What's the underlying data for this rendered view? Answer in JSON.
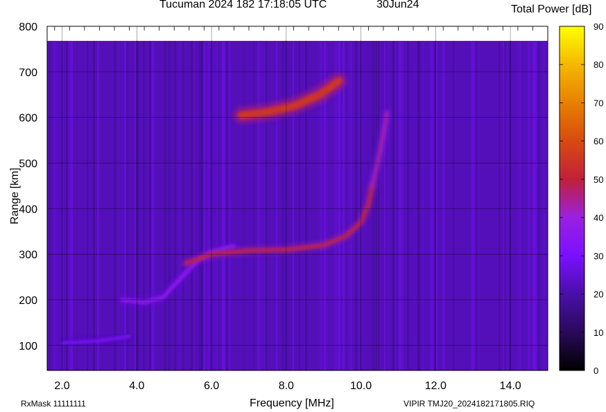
{
  "header": {
    "title": "Tucuman 2024 182 17:18:05 UTC",
    "date": "30Jun24"
  },
  "colorbar": {
    "title": "Total Power [dB]",
    "min": 0,
    "max": 90,
    "ticks": [
      "0",
      "10",
      "20",
      "30",
      "40",
      "50",
      "60",
      "70",
      "80",
      "90"
    ],
    "colors": [
      "#000000",
      "#2a0a5a",
      "#4a0fa8",
      "#7a10ff",
      "#9a20e0",
      "#c0203a",
      "#d84a10",
      "#e88000",
      "#f5b800",
      "#ffff00"
    ]
  },
  "footer": {
    "rxmask": "RxMask 11111111",
    "fileinfo": "VIPIR  TMJ20_2024182171805.RIQ"
  },
  "chart_data": {
    "type": "heatmap",
    "title": "Tucuman 2024 182 17:18:05 UTC",
    "xlabel": "Frequency [MHz]",
    "ylabel": "Range [km]",
    "xlim": [
      1.6,
      15.0
    ],
    "ylim": [
      45,
      800
    ],
    "data_top": 768,
    "xticks": [
      2.0,
      4.0,
      6.0,
      8.0,
      10.0,
      12.0,
      14.0
    ],
    "xtick_labels": [
      "2.0",
      "4.0",
      "6.0",
      "8.0",
      "10.0",
      "12.0",
      "14.0"
    ],
    "yticks": [
      100,
      200,
      300,
      400,
      500,
      600,
      700,
      800
    ],
    "ytick_labels": [
      "100",
      "200",
      "300",
      "400",
      "500",
      "600",
      "700",
      "800"
    ],
    "grid": true,
    "background_level_db": 22,
    "echo_traces": [
      {
        "name": "E/low trace",
        "power_db": 30,
        "points": [
          [
            2.0,
            105
          ],
          [
            3.0,
            110
          ],
          [
            3.8,
            120
          ]
        ]
      },
      {
        "name": "F1 lower trace",
        "power_db": 37,
        "points": [
          [
            3.6,
            200
          ],
          [
            4.2,
            195
          ],
          [
            4.7,
            205
          ],
          [
            5.2,
            250
          ],
          [
            5.6,
            285
          ],
          [
            6.0,
            305
          ],
          [
            6.6,
            318
          ]
        ]
      },
      {
        "name": "F2 O-trace",
        "power_db": 52,
        "points": [
          [
            5.3,
            280
          ],
          [
            6.0,
            300
          ],
          [
            7.0,
            308
          ],
          [
            8.0,
            310
          ],
          [
            9.0,
            320
          ],
          [
            9.6,
            340
          ],
          [
            10.0,
            370
          ],
          [
            10.2,
            410
          ],
          [
            10.3,
            450
          ]
        ]
      },
      {
        "name": "F2 X-trace",
        "power_db": 44,
        "points": [
          [
            10.3,
            450
          ],
          [
            10.5,
            520
          ],
          [
            10.7,
            610
          ]
        ]
      },
      {
        "name": "Multi-hop echo",
        "power_db": 55,
        "points": [
          [
            6.8,
            605
          ],
          [
            7.5,
            612
          ],
          [
            8.2,
            625
          ],
          [
            8.9,
            650
          ],
          [
            9.4,
            680
          ]
        ]
      }
    ]
  }
}
